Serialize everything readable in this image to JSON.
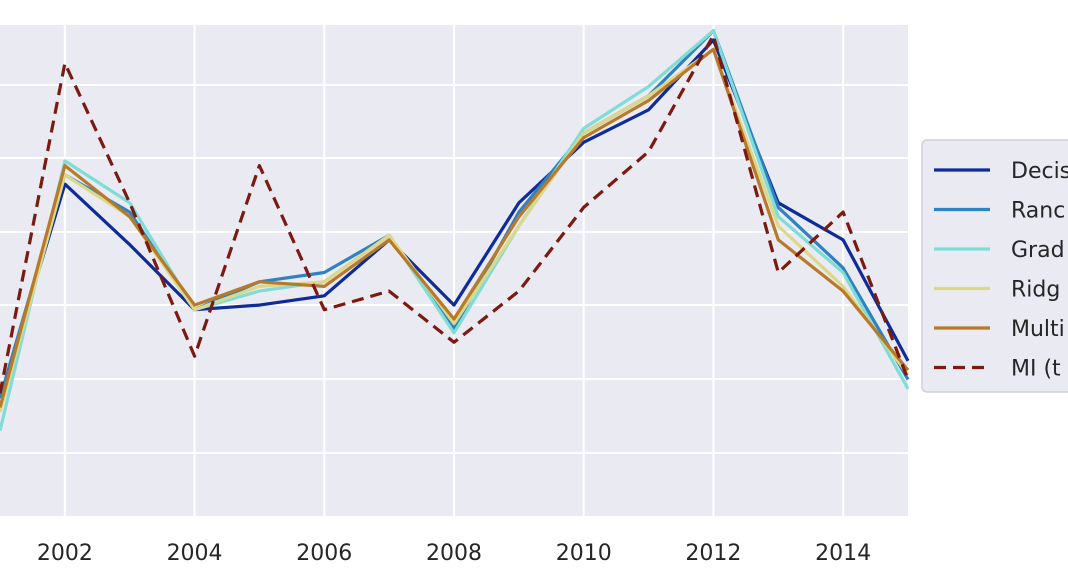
{
  "chart_data": {
    "type": "line",
    "title": "",
    "xlabel": "",
    "ylabel": "",
    "x": [
      2001,
      2002,
      2003,
      2004,
      2005,
      2006,
      2007,
      2008,
      2009,
      2010,
      2011,
      2012,
      2013,
      2014,
      2015
    ],
    "xlim": [
      2001,
      2015
    ],
    "ylim": [
      0,
      10
    ],
    "x_ticks": [
      "2002",
      "2004",
      "2006",
      "2008",
      "2010",
      "2012",
      "2014"
    ],
    "grid": true,
    "legend_placement": "right",
    "series": [
      {
        "name": "Decis",
        "color": "#0d2c9a",
        "dash": "solid",
        "values": [
          2.3,
          6.9,
          5.6,
          4.2,
          4.3,
          4.5,
          5.7,
          4.3,
          6.5,
          7.8,
          8.5,
          10.0,
          6.5,
          5.7,
          3.1
        ]
      },
      {
        "name": "Ranc",
        "color": "#2f82c2",
        "dash": "solid",
        "values": [
          2.3,
          7.1,
          6.3,
          4.2,
          4.8,
          5.0,
          5.8,
          3.8,
          6.3,
          8.0,
          8.8,
          10.2,
          6.4,
          5.1,
          2.7
        ]
      },
      {
        "name": "Grad",
        "color": "#7fdcd6",
        "dash": "solid",
        "values": [
          1.6,
          7.4,
          6.5,
          4.2,
          4.6,
          4.8,
          5.8,
          3.7,
          6.0,
          8.1,
          9.0,
          10.2,
          6.2,
          5.0,
          2.5
        ]
      },
      {
        "name": "Ridg",
        "color": "#dcd88a",
        "dash": "solid",
        "values": [
          2.0,
          7.1,
          6.2,
          4.2,
          4.7,
          4.8,
          5.8,
          3.9,
          6.0,
          8.0,
          8.8,
          9.8,
          6.0,
          4.7,
          2.8
        ]
      },
      {
        "name": "Multi",
        "color": "#b87a2a",
        "dash": "solid",
        "values": [
          2.1,
          7.3,
          6.2,
          4.3,
          4.8,
          4.7,
          5.7,
          4.0,
          6.2,
          7.9,
          8.7,
          9.8,
          5.7,
          4.6,
          2.9
        ]
      },
      {
        "name": "MI (t",
        "color": "#7b1a10",
        "dash": "dashed",
        "values": [
          2.4,
          9.5,
          6.5,
          3.2,
          7.3,
          4.2,
          4.6,
          3.5,
          4.6,
          6.4,
          7.6,
          10.1,
          5.0,
          6.3,
          2.7
        ]
      }
    ]
  }
}
